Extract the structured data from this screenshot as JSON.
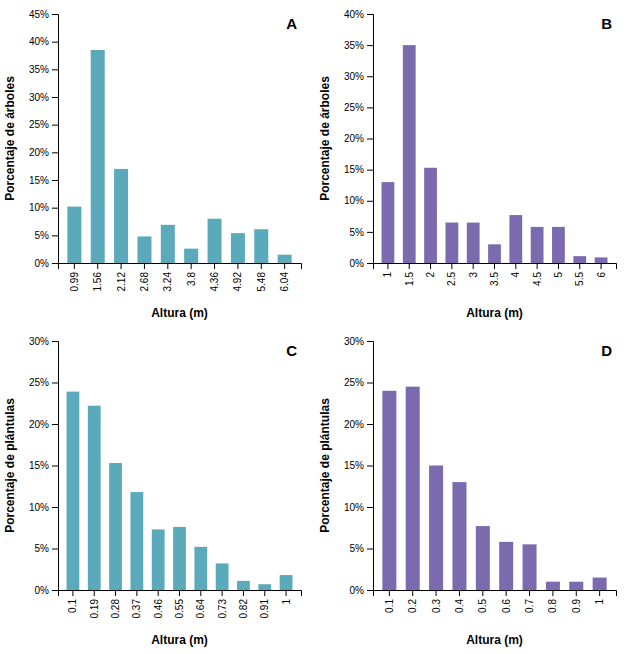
{
  "chart_data": [
    {
      "type": "bar",
      "categories": [
        "0.99",
        "1.56",
        "2.12",
        "2.68",
        "3.24",
        "3.8",
        "4.36",
        "4.92",
        "5.48",
        "6.04"
      ],
      "values": [
        10.2,
        38.5,
        17.0,
        4.8,
        6.9,
        2.6,
        8.0,
        5.4,
        6.1,
        1.5
      ],
      "color": "#5BAABC",
      "ylabel": "Porcentaje de árboles",
      "xlabel": "Altura (m)",
      "ylim": [
        0,
        45
      ],
      "yticks": [
        {
          "value": 0,
          "label": "0%"
        },
        {
          "value": 5,
          "label": "5%"
        },
        {
          "value": 10,
          "label": "10%"
        },
        {
          "value": 15,
          "label": "15%"
        },
        {
          "value": 20,
          "label": "20%"
        },
        {
          "value": 25,
          "label": "25%"
        },
        {
          "value": 30,
          "label": "30%"
        },
        {
          "value": 35,
          "label": "35%"
        },
        {
          "value": 40,
          "label": "40%"
        },
        {
          "value": 45,
          "label": "45%"
        }
      ],
      "annotations": [
        "A"
      ],
      "grid": false
    },
    {
      "type": "bar",
      "categories": [
        "1",
        "1.5",
        "2",
        "2.5",
        "3",
        "3.5",
        "4",
        "4.5",
        "5",
        "5.5",
        "6"
      ],
      "values": [
        13.0,
        35.0,
        15.3,
        6.5,
        6.5,
        3.0,
        7.7,
        5.8,
        5.8,
        1.1,
        0.9
      ],
      "color": "#7B6BAE",
      "ylabel": "Porcentaje de árboles",
      "xlabel": "Altura (m)",
      "ylim": [
        0,
        40
      ],
      "yticks": [
        {
          "value": 0,
          "label": "0%"
        },
        {
          "value": 5,
          "label": "5%"
        },
        {
          "value": 10,
          "label": "10%"
        },
        {
          "value": 15,
          "label": "15%"
        },
        {
          "value": 20,
          "label": "20%"
        },
        {
          "value": 25,
          "label": "25%"
        },
        {
          "value": 30,
          "label": "30%"
        },
        {
          "value": 35,
          "label": "35%"
        },
        {
          "value": 40,
          "label": "40%"
        }
      ],
      "annotations": [
        "B"
      ],
      "grid": false
    },
    {
      "type": "bar",
      "categories": [
        "0.1",
        "0.19",
        "0.28",
        "0.37",
        "0.46",
        "0.55",
        "0.64",
        "0.73",
        "0.82",
        "0.91",
        "1"
      ],
      "values": [
        23.9,
        22.2,
        15.3,
        11.8,
        7.3,
        7.6,
        5.2,
        3.2,
        1.1,
        0.7,
        1.8
      ],
      "color": "#5BAABC",
      "ylabel": "Porcentaje de plántulas",
      "xlabel": "Altura (m)",
      "ylim": [
        0,
        30
      ],
      "yticks": [
        {
          "value": 0,
          "label": "0%"
        },
        {
          "value": 5,
          "label": "5%"
        },
        {
          "value": 10,
          "label": "10%"
        },
        {
          "value": 15,
          "label": "15%"
        },
        {
          "value": 20,
          "label": "20%"
        },
        {
          "value": 25,
          "label": "25%"
        },
        {
          "value": 30,
          "label": "30%"
        }
      ],
      "annotations": [
        "C"
      ],
      "grid": false
    },
    {
      "type": "bar",
      "categories": [
        "0.1",
        "0.2",
        "0.3",
        "0.4",
        "0.5",
        "0.6",
        "0.7",
        "0.8",
        "0.9",
        "1"
      ],
      "values": [
        24.0,
        24.5,
        15.0,
        13.0,
        7.7,
        5.8,
        5.5,
        1.0,
        1.0,
        1.5
      ],
      "color": "#7B6BAE",
      "ylabel": "Porcentaje de plántulas",
      "xlabel": "Altura (m)",
      "ylim": [
        0,
        30
      ],
      "yticks": [
        {
          "value": 0,
          "label": "0%"
        },
        {
          "value": 5,
          "label": "5%"
        },
        {
          "value": 10,
          "label": "10%"
        },
        {
          "value": 15,
          "label": "15%"
        },
        {
          "value": 20,
          "label": "20%"
        },
        {
          "value": 25,
          "label": "25%"
        },
        {
          "value": 30,
          "label": "30%"
        }
      ],
      "annotations": [
        "D"
      ],
      "grid": false
    }
  ]
}
